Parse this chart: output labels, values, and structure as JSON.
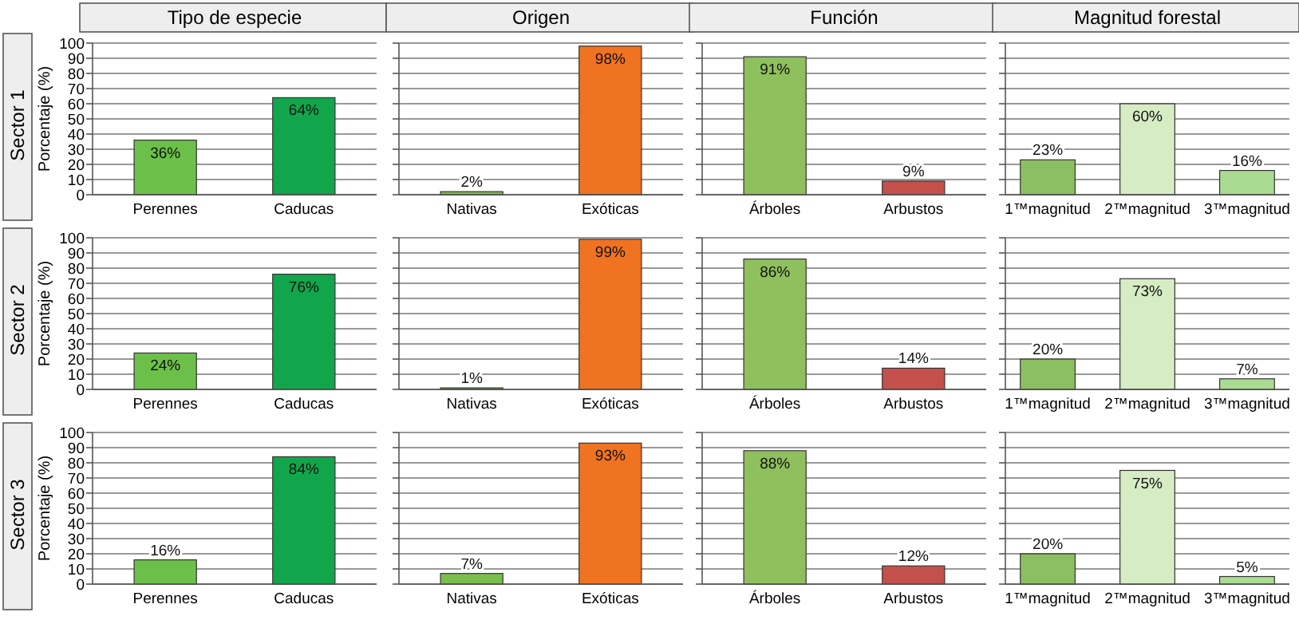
{
  "chart_data": [
    {
      "type": "bar",
      "title": "Tipo de especie",
      "ylabel": "Porcentaje (%)",
      "annotations": [
        "Sector 1"
      ],
      "categories": [
        "Perennes",
        "Caducas"
      ],
      "values": [
        36,
        64
      ],
      "value_labels": [
        "36%",
        "64%"
      ],
      "colors": [
        "#6cc04a",
        "#12a64c"
      ],
      "ylim": [
        0,
        100
      ],
      "yticks": [
        0,
        10,
        20,
        30,
        40,
        50,
        60,
        70,
        80,
        90,
        100
      ],
      "grid": "y"
    },
    {
      "type": "bar",
      "title": "Origen",
      "categories": [
        "Nativas",
        "Exóticas"
      ],
      "values": [
        2,
        98
      ],
      "value_labels": [
        "2%",
        "98%"
      ],
      "colors": [
        "#7abf4e",
        "#f07322"
      ],
      "ylim": [
        0,
        100
      ],
      "yticks": [
        0,
        10,
        20,
        30,
        40,
        50,
        60,
        70,
        80,
        90,
        100
      ],
      "grid": "y",
      "tick_labels": "x"
    },
    {
      "type": "bar",
      "title": "Función",
      "categories": [
        "Árboles",
        "Arbustos"
      ],
      "values": [
        91,
        9
      ],
      "value_labels": [
        "91%",
        "9%"
      ],
      "colors": [
        "#8fc05e",
        "#c4504c"
      ],
      "ylim": [
        0,
        100
      ],
      "yticks": [
        0,
        10,
        20,
        30,
        40,
        50,
        60,
        70,
        80,
        90,
        100
      ],
      "grid": "y",
      "tick_labels": "x"
    },
    {
      "type": "bar",
      "title": "Magnitud forestal",
      "categories": [
        "1™magnitud",
        "2™magnitud",
        "3™magnitud"
      ],
      "values": [
        23,
        60,
        16
      ],
      "value_labels": [
        "23%",
        "60%",
        "16%"
      ],
      "colors": [
        "#8cbf62",
        "#d6edc4",
        "#a9dc92"
      ],
      "ylim": [
        0,
        100
      ],
      "yticks": [
        0,
        10,
        20,
        30,
        40,
        50,
        60,
        70,
        80,
        90,
        100
      ],
      "grid": "y",
      "tick_labels": "x"
    },
    {
      "type": "bar",
      "ylabel": "Porcentaje (%)",
      "annotations": [
        "Sector 2"
      ],
      "categories": [
        "Perennes",
        "Caducas"
      ],
      "values": [
        24,
        76
      ],
      "value_labels": [
        "24%",
        "76%"
      ],
      "colors": [
        "#6cc04a",
        "#12a64c"
      ],
      "ylim": [
        0,
        100
      ],
      "yticks": [
        0,
        10,
        20,
        30,
        40,
        50,
        60,
        70,
        80,
        90,
        100
      ],
      "grid": "y"
    },
    {
      "type": "bar",
      "categories": [
        "Nativas",
        "Exóticas"
      ],
      "values": [
        1,
        99
      ],
      "value_labels": [
        "1%",
        "99%"
      ],
      "colors": [
        "#7abf4e",
        "#f07322"
      ],
      "ylim": [
        0,
        100
      ],
      "yticks": [
        0,
        10,
        20,
        30,
        40,
        50,
        60,
        70,
        80,
        90,
        100
      ],
      "grid": "y",
      "tick_labels": "x"
    },
    {
      "type": "bar",
      "categories": [
        "Árboles",
        "Arbustos"
      ],
      "values": [
        86,
        14
      ],
      "value_labels": [
        "86%",
        "14%"
      ],
      "colors": [
        "#8fc05e",
        "#c4504c"
      ],
      "ylim": [
        0,
        100
      ],
      "yticks": [
        0,
        10,
        20,
        30,
        40,
        50,
        60,
        70,
        80,
        90,
        100
      ],
      "grid": "y",
      "tick_labels": "x"
    },
    {
      "type": "bar",
      "categories": [
        "1™magnitud",
        "2™magnitud",
        "3™magnitud"
      ],
      "values": [
        20,
        73,
        7
      ],
      "value_labels": [
        "20%",
        "73%",
        "7%"
      ],
      "colors": [
        "#8cbf62",
        "#d6edc4",
        "#a9dc92"
      ],
      "ylim": [
        0,
        100
      ],
      "yticks": [
        0,
        10,
        20,
        30,
        40,
        50,
        60,
        70,
        80,
        90,
        100
      ],
      "grid": "y",
      "tick_labels": "x"
    },
    {
      "type": "bar",
      "ylabel": "Porcentaje (%)",
      "annotations": [
        "Sector 3"
      ],
      "categories": [
        "Perennes",
        "Caducas"
      ],
      "values": [
        16,
        84
      ],
      "value_labels": [
        "16%",
        "84%"
      ],
      "colors": [
        "#6cc04a",
        "#12a64c"
      ],
      "ylim": [
        0,
        100
      ],
      "yticks": [
        0,
        10,
        20,
        30,
        40,
        50,
        60,
        70,
        80,
        90,
        100
      ],
      "grid": "y"
    },
    {
      "type": "bar",
      "categories": [
        "Nativas",
        "Exóticas"
      ],
      "values": [
        7,
        93
      ],
      "value_labels": [
        "7%",
        "93%"
      ],
      "colors": [
        "#7abf4e",
        "#f07322"
      ],
      "ylim": [
        0,
        100
      ],
      "yticks": [
        0,
        10,
        20,
        30,
        40,
        50,
        60,
        70,
        80,
        90,
        100
      ],
      "grid": "y",
      "tick_labels": "x"
    },
    {
      "type": "bar",
      "categories": [
        "Árboles",
        "Arbustos"
      ],
      "values": [
        88,
        12
      ],
      "value_labels": [
        "88%",
        "12%"
      ],
      "colors": [
        "#8fc05e",
        "#c4504c"
      ],
      "ylim": [
        0,
        100
      ],
      "yticks": [
        0,
        10,
        20,
        30,
        40,
        50,
        60,
        70,
        80,
        90,
        100
      ],
      "grid": "y",
      "tick_labels": "x"
    },
    {
      "type": "bar",
      "categories": [
        "1™magnitud",
        "2™magnitud",
        "3™magnitud"
      ],
      "values": [
        20,
        75,
        5
      ],
      "value_labels": [
        "20%",
        "75%",
        "5%"
      ],
      "colors": [
        "#8cbf62",
        "#d6edc4",
        "#a9dc92"
      ],
      "ylim": [
        0,
        100
      ],
      "yticks": [
        0,
        10,
        20,
        30,
        40,
        50,
        60,
        70,
        80,
        90,
        100
      ],
      "grid": "y",
      "tick_labels": "x"
    }
  ]
}
